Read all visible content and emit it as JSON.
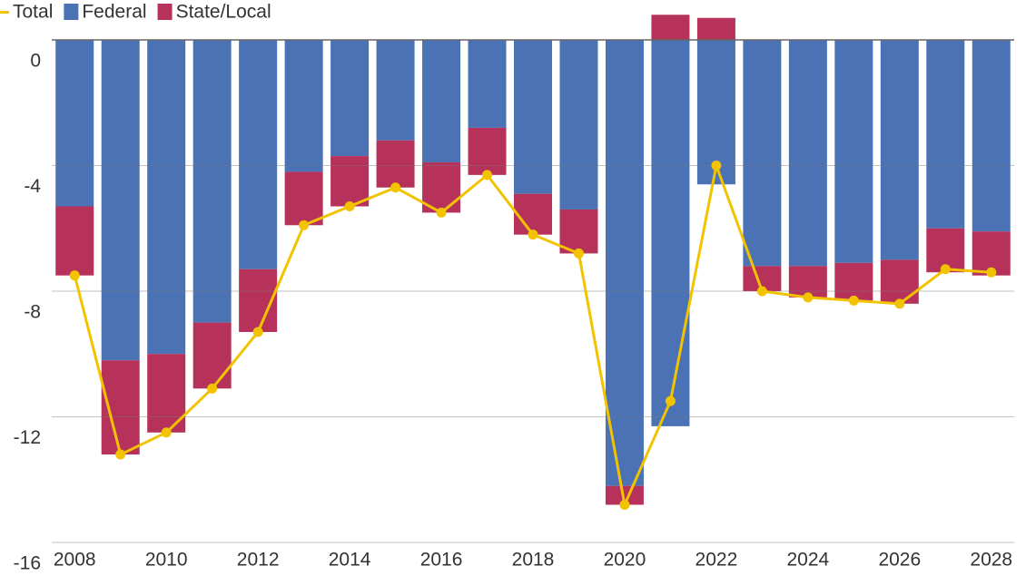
{
  "chart_data": {
    "type": "bar",
    "categories": [
      "2008",
      null,
      "2010",
      null,
      "2012",
      null,
      "2014",
      null,
      "2016",
      null,
      "2018",
      null,
      "2020",
      null,
      "2022",
      null,
      "2024",
      null,
      "2026",
      null,
      "2028"
    ],
    "series": [
      {
        "name": "Total",
        "type": "line",
        "color": "#f2c300",
        "values": [
          -7.5,
          -13.2,
          -12.5,
          -11.1,
          -9.3,
          -5.9,
          -5.3,
          -4.7,
          -5.5,
          -4.3,
          -6.2,
          -6.8,
          -14.8,
          -11.5,
          -4.0,
          -8.0,
          -8.2,
          -8.3,
          -8.4,
          -7.3,
          -7.4
        ]
      },
      {
        "name": "Federal",
        "type": "bar",
        "color": "#4a72b4",
        "values": [
          -5.3,
          -10.2,
          -10.0,
          -9.0,
          -7.3,
          -4.2,
          -3.7,
          -3.2,
          -3.9,
          -2.8,
          -4.9,
          -5.4,
          -14.2,
          -12.3,
          -4.6,
          -7.2,
          -7.2,
          -7.1,
          -7.0,
          -6.0,
          -6.1
        ]
      },
      {
        "name": "State/Local",
        "type": "bar",
        "color": "#b7325a",
        "values": [
          -2.2,
          -3.0,
          -2.5,
          -2.1,
          -2.0,
          -1.7,
          -1.6,
          -1.5,
          -1.6,
          -1.5,
          -1.3,
          -1.4,
          -0.6,
          0.8,
          0.7,
          -0.8,
          -1.0,
          -1.2,
          -1.4,
          -1.4,
          -1.4
        ]
      }
    ],
    "ylim": [
      -16,
      1.27
    ],
    "yticks": [
      0,
      -4,
      -8,
      -12,
      -16
    ],
    "grid": true
  }
}
